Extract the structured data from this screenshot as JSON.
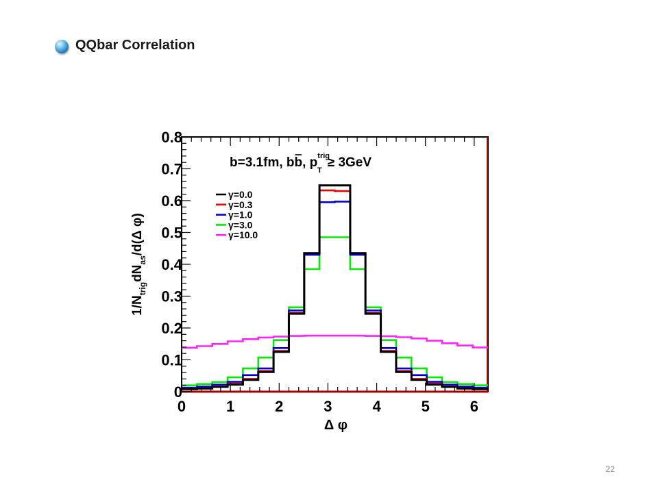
{
  "slide": {
    "title": "QQbar Correlation",
    "page_number": "22",
    "accent_color": "#2a86c4"
  },
  "chart_data": {
    "type": "line",
    "style": "step-histogram",
    "title": "",
    "annotation": {
      "prefix": "b=3.1fm, b",
      "overbar": "b",
      "mid": ", p",
      "sup": "trig",
      "sub": "T",
      "suffix": "≥ 3GeV"
    },
    "xlabel": "Δ φ",
    "ylabel": {
      "parts": [
        {
          "t": "1/N",
          "s": "normal"
        },
        {
          "t": "trig",
          "s": "sub"
        },
        {
          "t": "dN",
          "s": "normal"
        },
        {
          "t": "as",
          "s": "sub"
        },
        {
          "t": "/d(Δ φ)",
          "s": "normal"
        }
      ]
    },
    "xlim": [
      0,
      6.2832
    ],
    "ylim": [
      0,
      0.8
    ],
    "xticks": [
      "0",
      "1",
      "2",
      "3",
      "4",
      "5",
      "6"
    ],
    "yticks": [
      "0",
      "0.1",
      "0.2",
      "0.3",
      "0.4",
      "0.5",
      "0.6",
      "0.7",
      "0.8"
    ],
    "legend_position": "top-left",
    "grid": false,
    "bin_edges": [
      0,
      0.3142,
      0.6283,
      0.9425,
      1.2566,
      1.5708,
      1.885,
      2.1991,
      2.5133,
      2.8274,
      3.1416,
      3.4558,
      3.7699,
      4.0841,
      4.3982,
      4.7124,
      5.0265,
      5.3407,
      5.6549,
      5.969,
      6.2832
    ],
    "series": [
      {
        "name": "γ=10.0",
        "color": "#ff22ff",
        "values": [
          0.138,
          0.143,
          0.15,
          0.158,
          0.165,
          0.17,
          0.173,
          0.175,
          0.176,
          0.176,
          0.176,
          0.176,
          0.175,
          0.174,
          0.171,
          0.167,
          0.16,
          0.152,
          0.145,
          0.139
        ]
      },
      {
        "name": "γ=3.0",
        "color": "#00ee00",
        "values": [
          0.02,
          0.024,
          0.03,
          0.045,
          0.073,
          0.107,
          0.162,
          0.265,
          0.385,
          0.485,
          0.485,
          0.385,
          0.265,
          0.162,
          0.107,
          0.073,
          0.045,
          0.03,
          0.024,
          0.02
        ]
      },
      {
        "name": "γ=1.0",
        "color": "#0000dd",
        "values": [
          0.013,
          0.016,
          0.022,
          0.031,
          0.052,
          0.073,
          0.137,
          0.255,
          0.43,
          0.595,
          0.597,
          0.43,
          0.255,
          0.137,
          0.073,
          0.052,
          0.031,
          0.022,
          0.016,
          0.013
        ]
      },
      {
        "name": "γ=0.3",
        "color": "#ee0000",
        "values": [
          0.009,
          0.011,
          0.016,
          0.025,
          0.04,
          0.065,
          0.128,
          0.247,
          0.435,
          0.632,
          0.63,
          0.435,
          0.247,
          0.128,
          0.065,
          0.04,
          0.025,
          0.016,
          0.011,
          0.009
        ]
      },
      {
        "name": "γ=0.0",
        "color": "#000000",
        "values": [
          0.008,
          0.01,
          0.015,
          0.022,
          0.037,
          0.062,
          0.125,
          0.245,
          0.435,
          0.648,
          0.648,
          0.435,
          0.245,
          0.125,
          0.062,
          0.037,
          0.022,
          0.015,
          0.01,
          0.008
        ]
      }
    ],
    "legend_order": [
      "γ=0.0",
      "γ=0.3",
      "γ=1.0",
      "γ=3.0",
      "γ=10.0"
    ]
  }
}
